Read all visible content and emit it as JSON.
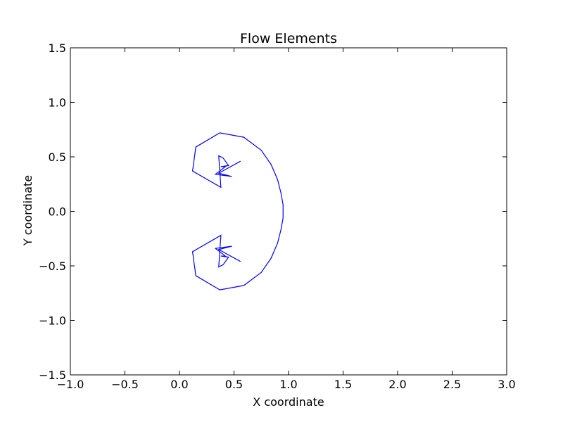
{
  "chart_data": {
    "type": "line",
    "title": "Flow Elements",
    "xlabel": "X coordinate",
    "ylabel": "Y coordinate",
    "xlim": [
      -1.0,
      3.0
    ],
    "ylim": [
      -1.5,
      1.5
    ],
    "x_ticks": [
      -1.0,
      -0.5,
      0.0,
      0.5,
      1.0,
      1.5,
      2.0,
      2.5,
      3.0
    ],
    "y_ticks": [
      -1.5,
      -1.0,
      -0.5,
      0.0,
      0.5,
      1.0,
      1.5
    ],
    "x_tick_labels": [
      "−1.0",
      "−0.5",
      "0.0",
      "0.5",
      "1.0",
      "1.5",
      "2.0",
      "2.5",
      "3.0"
    ],
    "y_tick_labels": [
      "−1.5",
      "−1.0",
      "−0.5",
      "0.0",
      "0.5",
      "1.0",
      "1.5"
    ],
    "grid": false,
    "series": [
      {
        "color": "#0000ff",
        "x": [
          0.56,
          0.36,
          0.48,
          0.33,
          0.42,
          0.38,
          0.45,
          0.4,
          0.36,
          0.38,
          0.12,
          0.15,
          0.37,
          0.59,
          0.75,
          0.84,
          0.9,
          0.93,
          0.95,
          0.95,
          0.95,
          0.93,
          0.9,
          0.84,
          0.75,
          0.59,
          0.37,
          0.15,
          0.12,
          0.38,
          0.36,
          0.4,
          0.45,
          0.38,
          0.42,
          0.33,
          0.48,
          0.36,
          0.56
        ],
        "y": [
          0.46,
          0.35,
          0.32,
          0.34,
          0.41,
          0.41,
          0.42,
          0.49,
          0.51,
          0.22,
          0.37,
          0.59,
          0.72,
          0.68,
          0.56,
          0.43,
          0.29,
          0.17,
          0.06,
          0.0,
          -0.06,
          -0.17,
          -0.29,
          -0.43,
          -0.56,
          -0.68,
          -0.72,
          -0.59,
          -0.37,
          -0.22,
          -0.51,
          -0.49,
          -0.42,
          -0.41,
          -0.41,
          -0.34,
          -0.32,
          -0.35,
          -0.46
        ]
      }
    ]
  }
}
